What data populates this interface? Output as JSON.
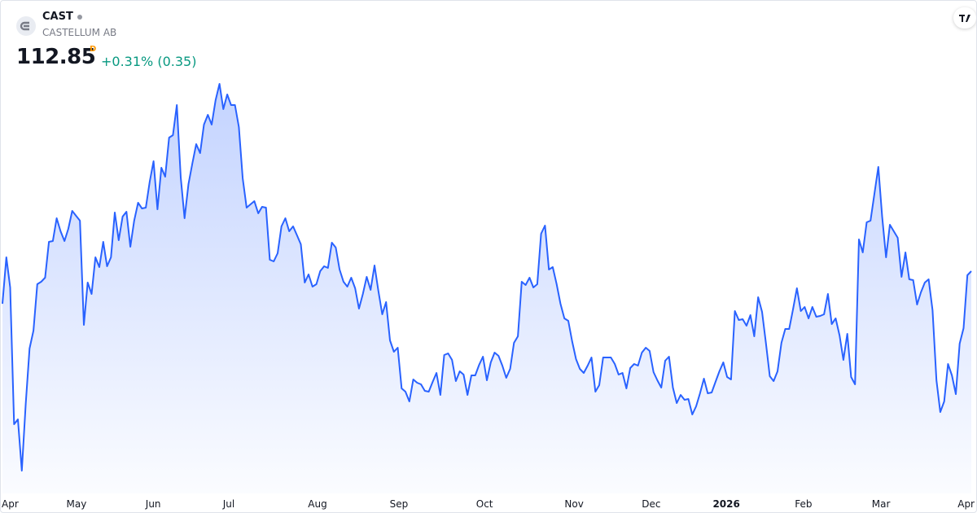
{
  "header": {
    "symbol": "CAST",
    "name": "CASTELLUM AB",
    "price": "112.85",
    "interval": "D",
    "change": "+0.31% (0.35)"
  },
  "chart_data": {
    "type": "line",
    "color": "#2962ff",
    "values": [
      110.05,
      114.04,
      111.45,
      99.69,
      100.11,
      95.7,
      101.44,
      106.2,
      107.74,
      111.73,
      111.94,
      112.29,
      115.37,
      115.44,
      117.4,
      116.28,
      115.44,
      116.49,
      118.03,
      117.61,
      117.19,
      108.23,
      111.87,
      110.89,
      114.04,
      113.2,
      115.37,
      113.27,
      114.04,
      117.89,
      115.51,
      117.54,
      117.96,
      114.95,
      117.19,
      118.73,
      118.24,
      118.31,
      120.55,
      122.3,
      118.17,
      121.74,
      120.97,
      124.33,
      124.54,
      127.13,
      120.9,
      117.4,
      120.34,
      122.09,
      123.77,
      123.0,
      125.45,
      126.29,
      125.45,
      127.55,
      128.95,
      126.78,
      128.04,
      127.13,
      127.13,
      125.24,
      120.83,
      118.31,
      118.59,
      118.87,
      117.82,
      118.38,
      118.31,
      113.83,
      113.69,
      114.39,
      116.7,
      117.4,
      116.28,
      116.7,
      115.93,
      115.16,
      111.87,
      112.57,
      111.52,
      111.73,
      112.85,
      113.27,
      113.13,
      115.3,
      114.88,
      112.99,
      111.94,
      111.52,
      112.29,
      111.38,
      109.63,
      110.89,
      112.36,
      111.24,
      113.34,
      111.17,
      109.14,
      110.19,
      106.9,
      105.92,
      106.27,
      102.77,
      102.49,
      101.65,
      103.54,
      103.26,
      103.12,
      102.56,
      102.49,
      103.33,
      104.1,
      102.21,
      105.64,
      105.78,
      105.22,
      103.4,
      104.24,
      103.96,
      102.21,
      103.89,
      103.89,
      104.8,
      105.5,
      103.47,
      105.01,
      105.85,
      105.57,
      104.73,
      103.68,
      104.45,
      106.69,
      107.25,
      111.94,
      111.66,
      112.29,
      111.45,
      111.73,
      116.07,
      116.77,
      112.99,
      113.2,
      111.73,
      110.05,
      108.79,
      108.58,
      106.83,
      105.29,
      104.45,
      104.1,
      104.73,
      105.43,
      102.49,
      103.05,
      105.43,
      105.43,
      105.43,
      104.87,
      103.96,
      104.1,
      102.77,
      104.52,
      104.87,
      104.73,
      105.85,
      106.27,
      105.99,
      104.17,
      103.47,
      102.84,
      105.15,
      105.5,
      102.84,
      101.51,
      102.21,
      101.79,
      101.86,
      100.53,
      101.23,
      102.35,
      103.61,
      102.35,
      102.42,
      103.33,
      104.24,
      105.01,
      103.75,
      103.54,
      109.42,
      108.65,
      108.72,
      108.16,
      109.07,
      107.25,
      110.61,
      109.35,
      106.69,
      103.82,
      103.4,
      104.24,
      106.69,
      107.88,
      107.88,
      109.56,
      111.38,
      109.42,
      109.77,
      108.79,
      109.77,
      108.93,
      109.0,
      109.14,
      110.89,
      108.3,
      108.79,
      107.32,
      105.22,
      107.46,
      103.75,
      103.12,
      115.58,
      114.46,
      117.05,
      117.19,
      119.5,
      121.81,
      117.54,
      114.04,
      116.84,
      116.28,
      115.72,
      112.36,
      114.46,
      112.15,
      112.08,
      109.98,
      111.03,
      111.87,
      112.15,
      109.49,
      103.47,
      100.74,
      101.65,
      104.87,
      103.89,
      102.28,
      106.62,
      107.95,
      112.5,
      112.85
    ],
    "ylim": [
      94.09,
      129.79
    ],
    "xticks": [
      {
        "value": 1.9,
        "label": "Apr"
      },
      {
        "value": 19.1,
        "label": "May"
      },
      {
        "value": 38.9,
        "label": "Jun"
      },
      {
        "value": 58.4,
        "label": "Jul"
      },
      {
        "value": 81.3,
        "label": "Aug"
      },
      {
        "value": 102.3,
        "label": "Sep"
      },
      {
        "value": 124.4,
        "label": "Oct"
      },
      {
        "value": 147.5,
        "label": "Nov"
      },
      {
        "value": 167.4,
        "label": "Dec"
      },
      {
        "value": 186.8,
        "label": "2026"
      },
      {
        "value": 206.7,
        "label": "Feb"
      },
      {
        "value": 226.7,
        "label": "Mar"
      },
      {
        "value": 248.7,
        "label": "Apr"
      }
    ]
  }
}
